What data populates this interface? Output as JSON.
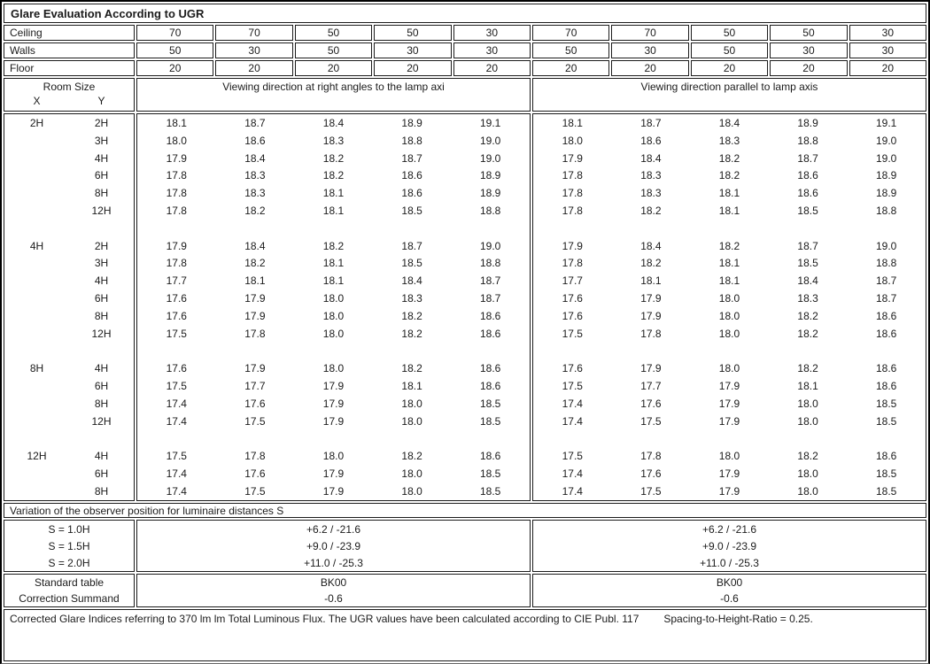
{
  "title": "Glare Evaluation According to UGR",
  "surface_rows": [
    {
      "label": "Ceiling",
      "values": [
        "70",
        "70",
        "50",
        "50",
        "30",
        "70",
        "70",
        "50",
        "50",
        "30"
      ]
    },
    {
      "label": "Walls",
      "values": [
        "50",
        "30",
        "50",
        "30",
        "30",
        "50",
        "30",
        "50",
        "30",
        "30"
      ]
    },
    {
      "label": "Floor",
      "values": [
        "20",
        "20",
        "20",
        "20",
        "20",
        "20",
        "20",
        "20",
        "20",
        "20"
      ]
    }
  ],
  "header": {
    "room_size": "Room Size",
    "x": "X",
    "y": "Y",
    "right_angles": "Viewing direction at right angles to the lamp axi",
    "parallel": "Viewing direction parallel to lamp axis"
  },
  "ugr_blocks": [
    {
      "x": "2H",
      "rows": [
        {
          "y": "2H",
          "right_angles": [
            "18.1",
            "18.7",
            "18.4",
            "18.9",
            "19.1"
          ],
          "parallel": [
            "18.1",
            "18.7",
            "18.4",
            "18.9",
            "19.1"
          ]
        },
        {
          "y": "3H",
          "right_angles": [
            "18.0",
            "18.6",
            "18.3",
            "18.8",
            "19.0"
          ],
          "parallel": [
            "18.0",
            "18.6",
            "18.3",
            "18.8",
            "19.0"
          ]
        },
        {
          "y": "4H",
          "right_angles": [
            "17.9",
            "18.4",
            "18.2",
            "18.7",
            "19.0"
          ],
          "parallel": [
            "17.9",
            "18.4",
            "18.2",
            "18.7",
            "19.0"
          ]
        },
        {
          "y": "6H",
          "right_angles": [
            "17.8",
            "18.3",
            "18.2",
            "18.6",
            "18.9"
          ],
          "parallel": [
            "17.8",
            "18.3",
            "18.2",
            "18.6",
            "18.9"
          ]
        },
        {
          "y": "8H",
          "right_angles": [
            "17.8",
            "18.3",
            "18.1",
            "18.6",
            "18.9"
          ],
          "parallel": [
            "17.8",
            "18.3",
            "18.1",
            "18.6",
            "18.9"
          ]
        },
        {
          "y": "12H",
          "right_angles": [
            "17.8",
            "18.2",
            "18.1",
            "18.5",
            "18.8"
          ],
          "parallel": [
            "17.8",
            "18.2",
            "18.1",
            "18.5",
            "18.8"
          ]
        }
      ]
    },
    {
      "x": "4H",
      "rows": [
        {
          "y": "2H",
          "right_angles": [
            "17.9",
            "18.4",
            "18.2",
            "18.7",
            "19.0"
          ],
          "parallel": [
            "17.9",
            "18.4",
            "18.2",
            "18.7",
            "19.0"
          ]
        },
        {
          "y": "3H",
          "right_angles": [
            "17.8",
            "18.2",
            "18.1",
            "18.5",
            "18.8"
          ],
          "parallel": [
            "17.8",
            "18.2",
            "18.1",
            "18.5",
            "18.8"
          ]
        },
        {
          "y": "4H",
          "right_angles": [
            "17.7",
            "18.1",
            "18.1",
            "18.4",
            "18.7"
          ],
          "parallel": [
            "17.7",
            "18.1",
            "18.1",
            "18.4",
            "18.7"
          ]
        },
        {
          "y": "6H",
          "right_angles": [
            "17.6",
            "17.9",
            "18.0",
            "18.3",
            "18.7"
          ],
          "parallel": [
            "17.6",
            "17.9",
            "18.0",
            "18.3",
            "18.7"
          ]
        },
        {
          "y": "8H",
          "right_angles": [
            "17.6",
            "17.9",
            "18.0",
            "18.2",
            "18.6"
          ],
          "parallel": [
            "17.6",
            "17.9",
            "18.0",
            "18.2",
            "18.6"
          ]
        },
        {
          "y": "12H",
          "right_angles": [
            "17.5",
            "17.8",
            "18.0",
            "18.2",
            "18.6"
          ],
          "parallel": [
            "17.5",
            "17.8",
            "18.0",
            "18.2",
            "18.6"
          ]
        }
      ]
    },
    {
      "x": "8H",
      "rows": [
        {
          "y": "4H",
          "right_angles": [
            "17.6",
            "17.9",
            "18.0",
            "18.2",
            "18.6"
          ],
          "parallel": [
            "17.6",
            "17.9",
            "18.0",
            "18.2",
            "18.6"
          ]
        },
        {
          "y": "6H",
          "right_angles": [
            "17.5",
            "17.7",
            "17.9",
            "18.1",
            "18.6"
          ],
          "parallel": [
            "17.5",
            "17.7",
            "17.9",
            "18.1",
            "18.6"
          ]
        },
        {
          "y": "8H",
          "right_angles": [
            "17.4",
            "17.6",
            "17.9",
            "18.0",
            "18.5"
          ],
          "parallel": [
            "17.4",
            "17.6",
            "17.9",
            "18.0",
            "18.5"
          ]
        },
        {
          "y": "12H",
          "right_angles": [
            "17.4",
            "17.5",
            "17.9",
            "18.0",
            "18.5"
          ],
          "parallel": [
            "17.4",
            "17.5",
            "17.9",
            "18.0",
            "18.5"
          ]
        }
      ]
    },
    {
      "x": "12H",
      "rows": [
        {
          "y": "4H",
          "right_angles": [
            "17.5",
            "17.8",
            "18.0",
            "18.2",
            "18.6"
          ],
          "parallel": [
            "17.5",
            "17.8",
            "18.0",
            "18.2",
            "18.6"
          ]
        },
        {
          "y": "6H",
          "right_angles": [
            "17.4",
            "17.6",
            "17.9",
            "18.0",
            "18.5"
          ],
          "parallel": [
            "17.4",
            "17.6",
            "17.9",
            "18.0",
            "18.5"
          ]
        },
        {
          "y": "8H",
          "right_angles": [
            "17.4",
            "17.5",
            "17.9",
            "18.0",
            "18.5"
          ],
          "parallel": [
            "17.4",
            "17.5",
            "17.9",
            "18.0",
            "18.5"
          ]
        }
      ]
    }
  ],
  "variation_heading": "Variation of the observer position for luminaire distances S",
  "s_rows": [
    {
      "label": "S = 1.0H",
      "right_angles": "+6.2 / -21.6",
      "parallel": "+6.2 / -21.6"
    },
    {
      "label": "S = 1.5H",
      "right_angles": "+9.0 / -23.9",
      "parallel": "+9.0 / -23.9"
    },
    {
      "label": "S = 2.0H",
      "right_angles": "+11.0 / -25.3",
      "parallel": "+11.0 / -25.3"
    }
  ],
  "standard_rows": [
    {
      "label": "Standard table",
      "right_angles": "BK00",
      "parallel": "BK00"
    },
    {
      "label": "Correction Summand",
      "right_angles": "-0.6",
      "parallel": "-0.6"
    }
  ],
  "footer": {
    "text": "Corrected Glare Indices referring to 370 lm lm Total Luminous Flux. The UGR values have been calculated according to CIE Publ. 117",
    "ratio": "Spacing-to-Height-Ratio = 0.25."
  }
}
